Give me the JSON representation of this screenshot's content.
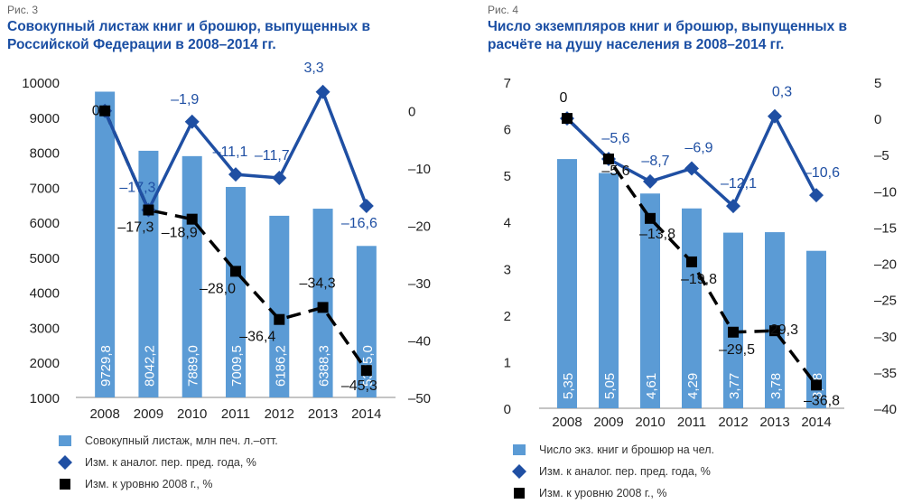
{
  "colors": {
    "bar": "#5b9bd5",
    "line_prev_year": "#1f4fa3",
    "line_2008": "#000000",
    "title": "#1a4ea3"
  },
  "chart_data": [
    {
      "type": "bar",
      "figure_label": "Рис. 3",
      "title": "Совокупный листаж книг и брошюр, выпущенных в Российской Федерации в 2008–2014 гг.",
      "categories": [
        "2008",
        "2009",
        "2010",
        "2011",
        "2012",
        "2013",
        "2014"
      ],
      "ylim_left": [
        1000,
        10000
      ],
      "yticks_left": [
        "1000",
        "2000",
        "3000",
        "4000",
        "5000",
        "6000",
        "7000",
        "8000",
        "9000",
        "10000"
      ],
      "ylim_right": [
        -50,
        5
      ],
      "yticks_right": [
        "0",
        "–10",
        "–20",
        "–30",
        "–40",
        "–50"
      ],
      "series": [
        {
          "name": "Совокупный листаж, млн печ. л.–отт.",
          "type": "bar",
          "axis": "left",
          "values": [
            9729.8,
            8042.2,
            7889.0,
            7009.5,
            6186.2,
            6388.3,
            5325.0
          ],
          "labels": [
            "9729,8",
            "8042,2",
            "7889,0",
            "7009,5",
            "6186,2",
            "6388,3",
            "5325,0"
          ]
        },
        {
          "name": "Изм. к аналог. пер. пред. года, %",
          "type": "line",
          "axis": "right",
          "marker": "diamond",
          "values": [
            0,
            -17.3,
            -1.9,
            -11.1,
            -11.7,
            3.3,
            -16.6
          ],
          "labels": [
            "",
            "–17,3",
            "–1,9",
            "–11,1",
            "–11,7",
            "3,3",
            "–16,6"
          ]
        },
        {
          "name": "Изм. к уровню 2008 г., %",
          "type": "line",
          "axis": "right",
          "marker": "square",
          "dash": true,
          "values": [
            0,
            -17.3,
            -18.9,
            -28.0,
            -36.4,
            -34.3,
            -45.3
          ],
          "labels": [
            "0",
            "–17,3",
            "–18,9",
            "–28,0",
            "–36,4",
            "–34,3",
            "–45,3"
          ]
        }
      ]
    },
    {
      "type": "bar",
      "figure_label": "Рис. 4",
      "title": "Число экземпляров книг и брошюр, выпущенных в расчёте на душу населения в 2008–2014 гг.",
      "categories": [
        "2008",
        "2009",
        "2010",
        "2011",
        "2012",
        "2013",
        "2014"
      ],
      "ylim_left": [
        0,
        7
      ],
      "yticks_left": [
        "0",
        "1",
        "2",
        "3",
        "4",
        "5",
        "6",
        "7"
      ],
      "ylim_right": [
        -40,
        5
      ],
      "yticks_right": [
        "5",
        "0",
        "–5",
        "–10",
        "–15",
        "–20",
        "–25",
        "–30",
        "–35",
        "–40"
      ],
      "series": [
        {
          "name": "Число экз. книг и брошюр на чел.",
          "type": "bar",
          "axis": "left",
          "values": [
            5.35,
            5.05,
            4.61,
            4.29,
            3.77,
            3.78,
            3.38
          ],
          "labels": [
            "5,35",
            "5,05",
            "4,61",
            "4,29",
            "3,77",
            "3,78",
            "3,38"
          ]
        },
        {
          "name": "Изм. к аналог. пер. пред. года, %",
          "type": "line",
          "axis": "right",
          "marker": "diamond",
          "values": [
            0,
            -5.6,
            -8.7,
            -6.9,
            -12.1,
            0.3,
            -10.6
          ],
          "labels": [
            "",
            "–5,6",
            "–8,7",
            "–6,9",
            "–12,1",
            "0,3",
            "–10,6"
          ]
        },
        {
          "name": "Изм. к уровню 2008 г., %",
          "type": "line",
          "axis": "right",
          "marker": "square",
          "dash": true,
          "values": [
            0,
            -5.6,
            -13.8,
            -19.8,
            -29.5,
            -29.3,
            -36.8
          ],
          "labels": [
            "0",
            "–5,6",
            "–13,8",
            "–19,8",
            "–29,5",
            "–29,3",
            "–36,8"
          ]
        }
      ]
    }
  ]
}
